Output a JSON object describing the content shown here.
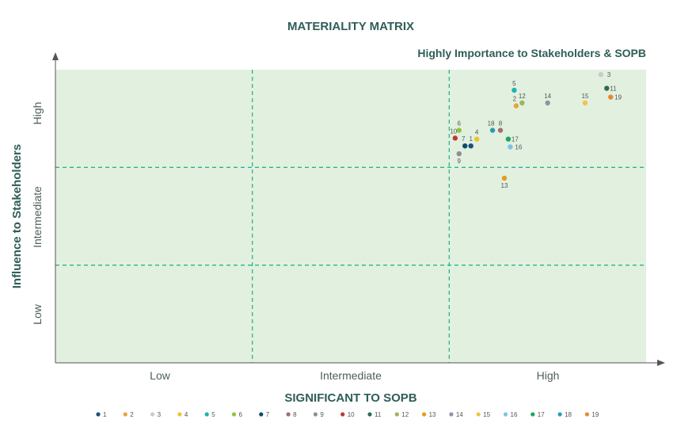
{
  "chart_data": {
    "type": "scatter",
    "title": "MATERIALITY MATRIX",
    "subtitle": "Highly Importance to Stakeholders & SOPB",
    "xlabel": "SIGNIFICANT TO SOPB",
    "ylabel": "Influence to Stakeholders",
    "xlim": [
      0,
      3
    ],
    "ylim": [
      0,
      3
    ],
    "x_ticks": [
      "Low",
      "Intermediate",
      "High"
    ],
    "y_ticks": [
      "Low",
      "Intermediate",
      "High"
    ],
    "grid": "dashed quadrant lines at 1 and 2",
    "legend_position": "bottom",
    "points": [
      {
        "label": "1",
        "x": 2.11,
        "y": 2.22,
        "color": "#1f4e79"
      },
      {
        "label": "2",
        "x": 2.34,
        "y": 2.63,
        "color": "#e8a33d"
      },
      {
        "label": "3",
        "x": 2.77,
        "y": 2.95,
        "color": "#c9cbc9"
      },
      {
        "label": "4",
        "x": 2.14,
        "y": 2.29,
        "color": "#f2c12e"
      },
      {
        "label": "5",
        "x": 2.33,
        "y": 2.79,
        "color": "#1bb3b0"
      },
      {
        "label": "6",
        "x": 2.05,
        "y": 2.38,
        "color": "#8cc63f"
      },
      {
        "label": "7",
        "x": 2.08,
        "y": 2.22,
        "color": "#0b4d6b"
      },
      {
        "label": "8",
        "x": 2.26,
        "y": 2.38,
        "color": "#a0706e"
      },
      {
        "label": "9",
        "x": 2.05,
        "y": 2.14,
        "color": "#8a9096"
      },
      {
        "label": "10",
        "x": 2.03,
        "y": 2.3,
        "color": "#c0392b"
      },
      {
        "label": "11",
        "x": 2.8,
        "y": 2.81,
        "color": "#2e6b57"
      },
      {
        "label": "12",
        "x": 2.37,
        "y": 2.66,
        "color": "#9cb55a"
      },
      {
        "label": "13",
        "x": 2.28,
        "y": 1.89,
        "color": "#e89a1c"
      },
      {
        "label": "14",
        "x": 2.5,
        "y": 2.66,
        "color": "#8c95a5"
      },
      {
        "label": "15",
        "x": 2.69,
        "y": 2.66,
        "color": "#f5c342"
      },
      {
        "label": "16",
        "x": 2.31,
        "y": 2.21,
        "color": "#7dc1e8"
      },
      {
        "label": "17",
        "x": 2.3,
        "y": 2.29,
        "color": "#1aa760"
      },
      {
        "label": "18",
        "x": 2.22,
        "y": 2.38,
        "color": "#2a9db2"
      },
      {
        "label": "19",
        "x": 2.82,
        "y": 2.72,
        "color": "#e8892c"
      }
    ],
    "legend": [
      "1",
      "2",
      "3",
      "4",
      "5",
      "6",
      "7",
      "8",
      "9",
      "10",
      "11",
      "12",
      "13",
      "14",
      "15",
      "16",
      "17",
      "18",
      "19"
    ]
  },
  "colors": {
    "plot_bg": "#e2f0e0",
    "grid_line": "#2ab58f",
    "title": "#2f5d57",
    "axis": "#555555"
  }
}
